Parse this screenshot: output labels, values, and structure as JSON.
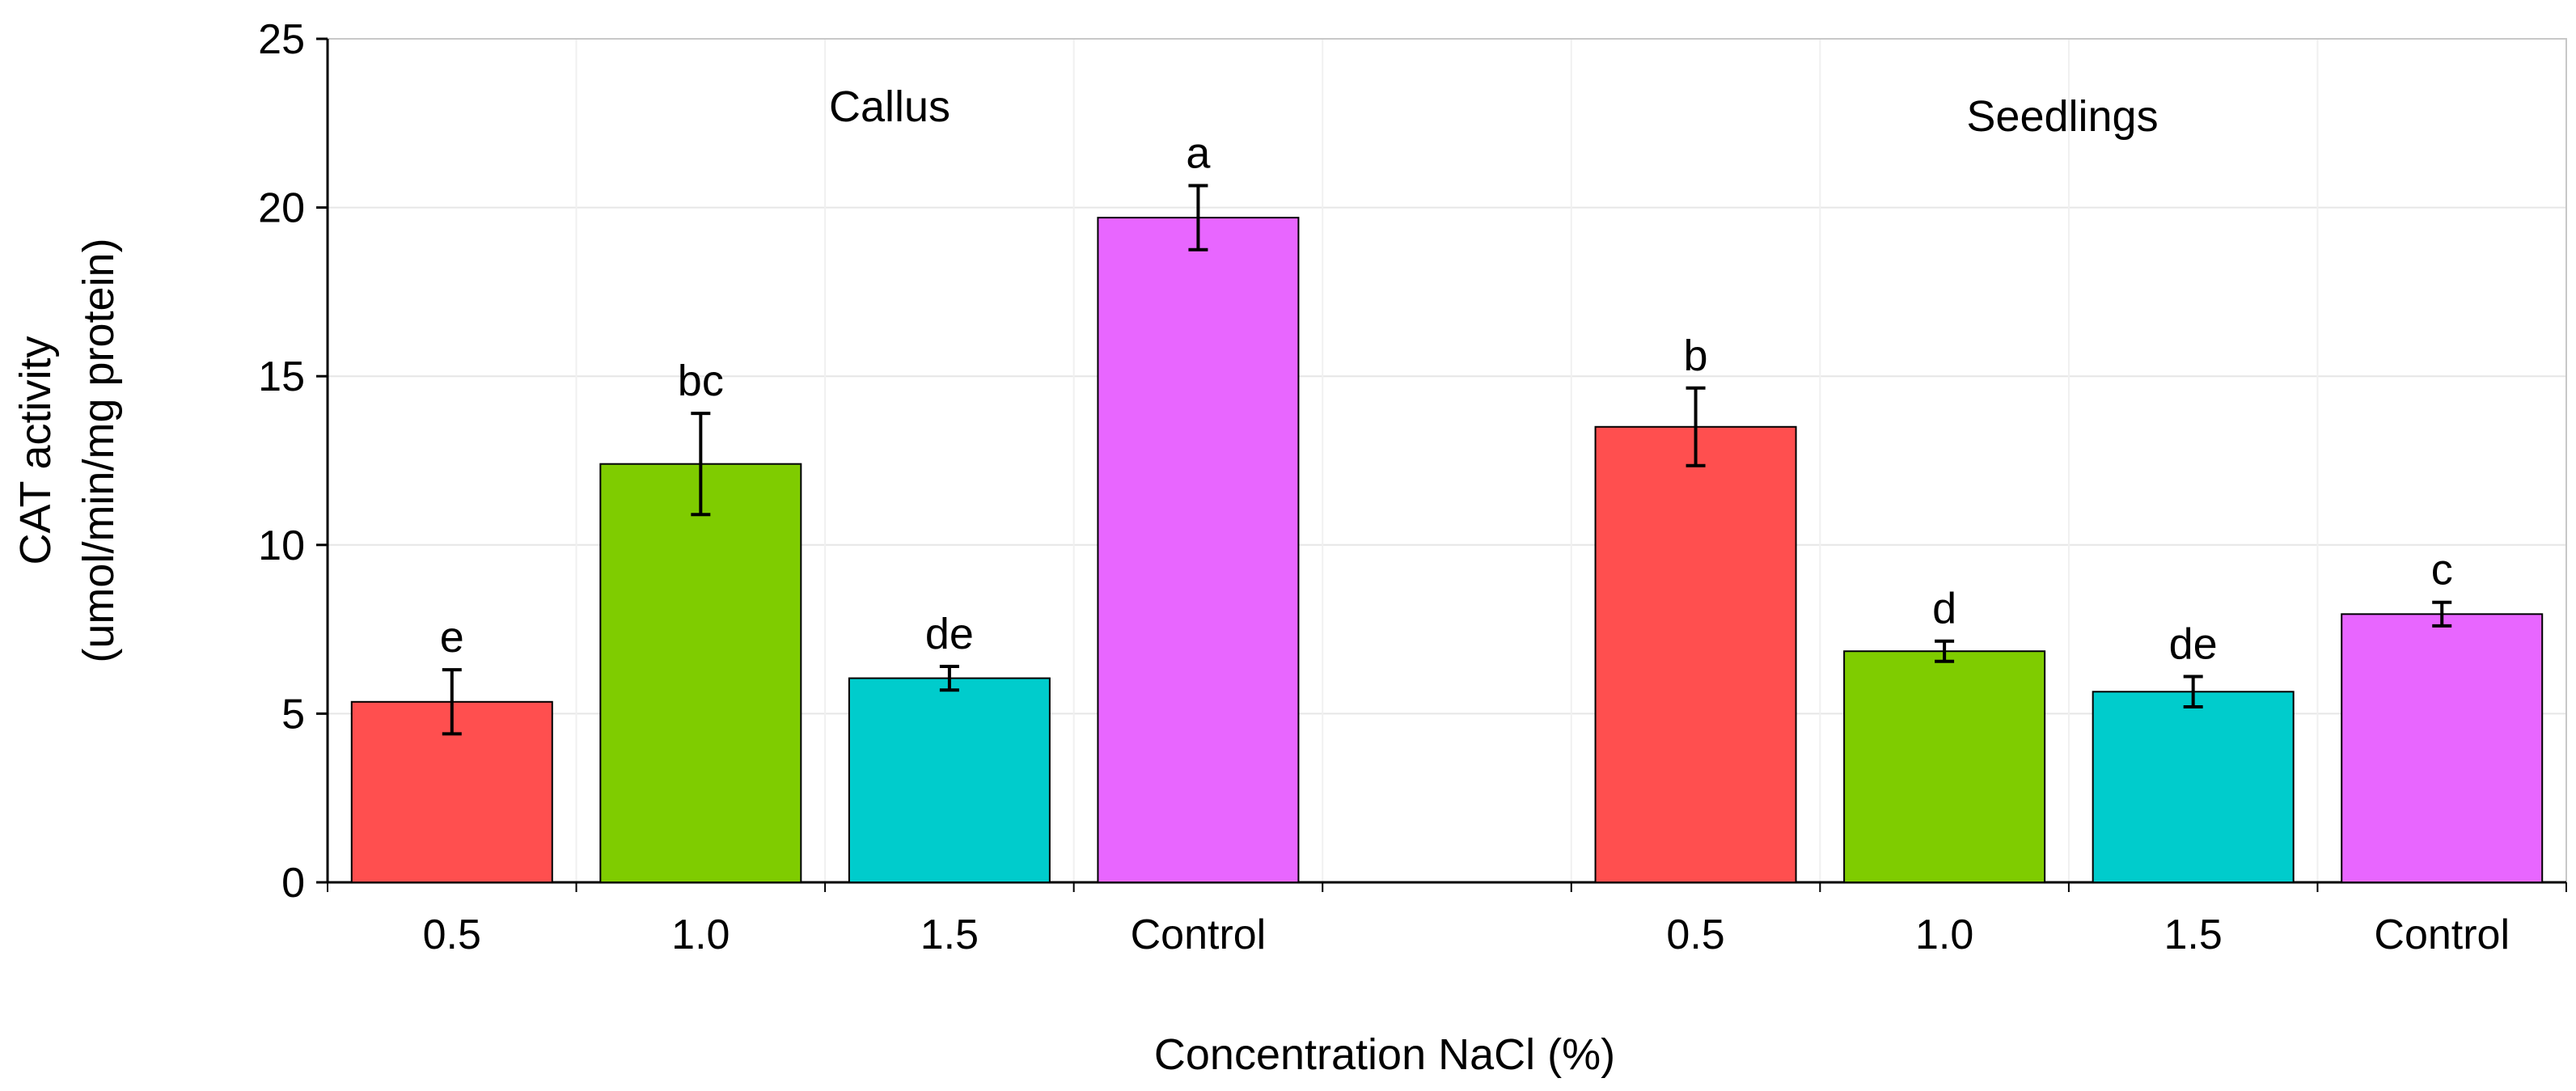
{
  "chart_data": {
    "type": "bar",
    "title": "",
    "xlabel": "Concentration NaCl (%)",
    "ylabel": "CAT activity",
    "ylabel_units": "(umol/min/mg protein)",
    "ylim": [
      0,
      25
    ],
    "yticks": [
      0,
      5,
      10,
      15,
      20,
      25
    ],
    "grid": true,
    "groups": [
      {
        "name": "Callus",
        "bars": [
          {
            "category": "0.5",
            "value": 5.35,
            "error": 0.95,
            "letter": "e",
            "color": "#FF4F4F"
          },
          {
            "category": "1.0",
            "value": 12.4,
            "error": 1.5,
            "letter": "bc",
            "color": "#7FCC00"
          },
          {
            "category": "1.5",
            "value": 6.05,
            "error": 0.35,
            "letter": "de",
            "color": "#00CCCC"
          },
          {
            "category": "Control",
            "value": 19.7,
            "error": 0.95,
            "letter": "a",
            "color": "#E866FF"
          }
        ]
      },
      {
        "name": "Seedlings",
        "bars": [
          {
            "category": "0.5",
            "value": 13.5,
            "error": 1.15,
            "letter": "b",
            "color": "#FF4F4F"
          },
          {
            "category": "1.0",
            "value": 6.85,
            "error": 0.3,
            "letter": "d",
            "color": "#7FCC00"
          },
          {
            "category": "1.5",
            "value": 5.65,
            "error": 0.45,
            "letter": "de",
            "color": "#00CCCC"
          },
          {
            "category": "Control",
            "value": 7.95,
            "error": 0.35,
            "letter": "c",
            "color": "#E866FF"
          }
        ]
      }
    ]
  }
}
